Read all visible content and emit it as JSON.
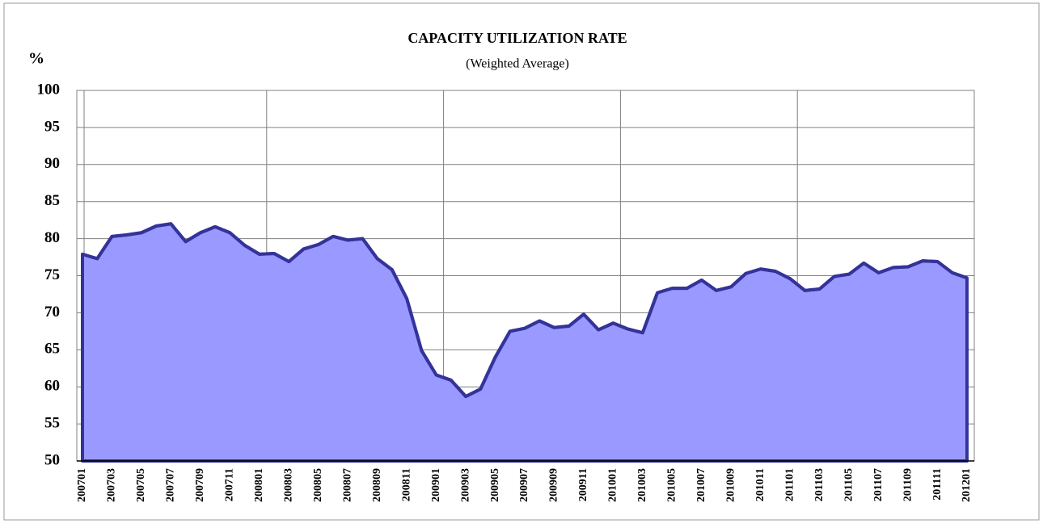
{
  "chart_data": {
    "type": "area",
    "title": "CAPACITY UTILIZATION RATE",
    "subtitle": "(Weighted Average)",
    "y_label": "%",
    "categories": [
      "200701",
      null,
      "200703",
      null,
      "200705",
      null,
      "200707",
      null,
      "200709",
      null,
      "200711",
      null,
      "200801",
      null,
      "200803",
      null,
      "200805",
      null,
      "200807",
      null,
      "200809",
      null,
      "200811",
      null,
      "200901",
      null,
      "200903",
      null,
      "200905",
      null,
      "200907",
      null,
      "200909",
      null,
      "200911",
      null,
      "201001",
      null,
      "201003",
      null,
      "201005",
      null,
      "201007",
      null,
      "201009",
      null,
      "201011",
      null,
      "201101",
      null,
      "201103",
      null,
      "201105",
      null,
      "201107",
      null,
      "201109",
      null,
      "201111",
      null,
      "201201"
    ],
    "values": [
      77.9,
      77.3,
      80.3,
      80.5,
      80.8,
      81.7,
      82.0,
      79.6,
      80.8,
      81.6,
      80.8,
      79.1,
      77.9,
      78.0,
      76.9,
      78.6,
      79.2,
      80.3,
      79.8,
      80.0,
      77.3,
      75.8,
      71.9,
      64.9,
      61.6,
      60.9,
      58.7,
      59.7,
      64.0,
      67.5,
      67.9,
      68.9,
      68.0,
      68.2,
      69.8,
      67.7,
      68.6,
      67.8,
      67.3,
      72.7,
      73.3,
      73.3,
      74.4,
      73.0,
      73.5,
      75.3,
      75.9,
      75.6,
      74.6,
      73.0,
      73.2,
      74.9,
      75.2,
      76.7,
      75.4,
      76.1,
      76.2,
      77.0,
      76.9,
      75.4,
      74.7
    ],
    "color": "#9999ff",
    "line_color": "#333399",
    "ylim": [
      50,
      100
    ],
    "yticks": [
      50,
      55,
      60,
      65,
      70,
      75,
      80,
      85,
      90,
      95,
      100
    ],
    "grid": true
  }
}
